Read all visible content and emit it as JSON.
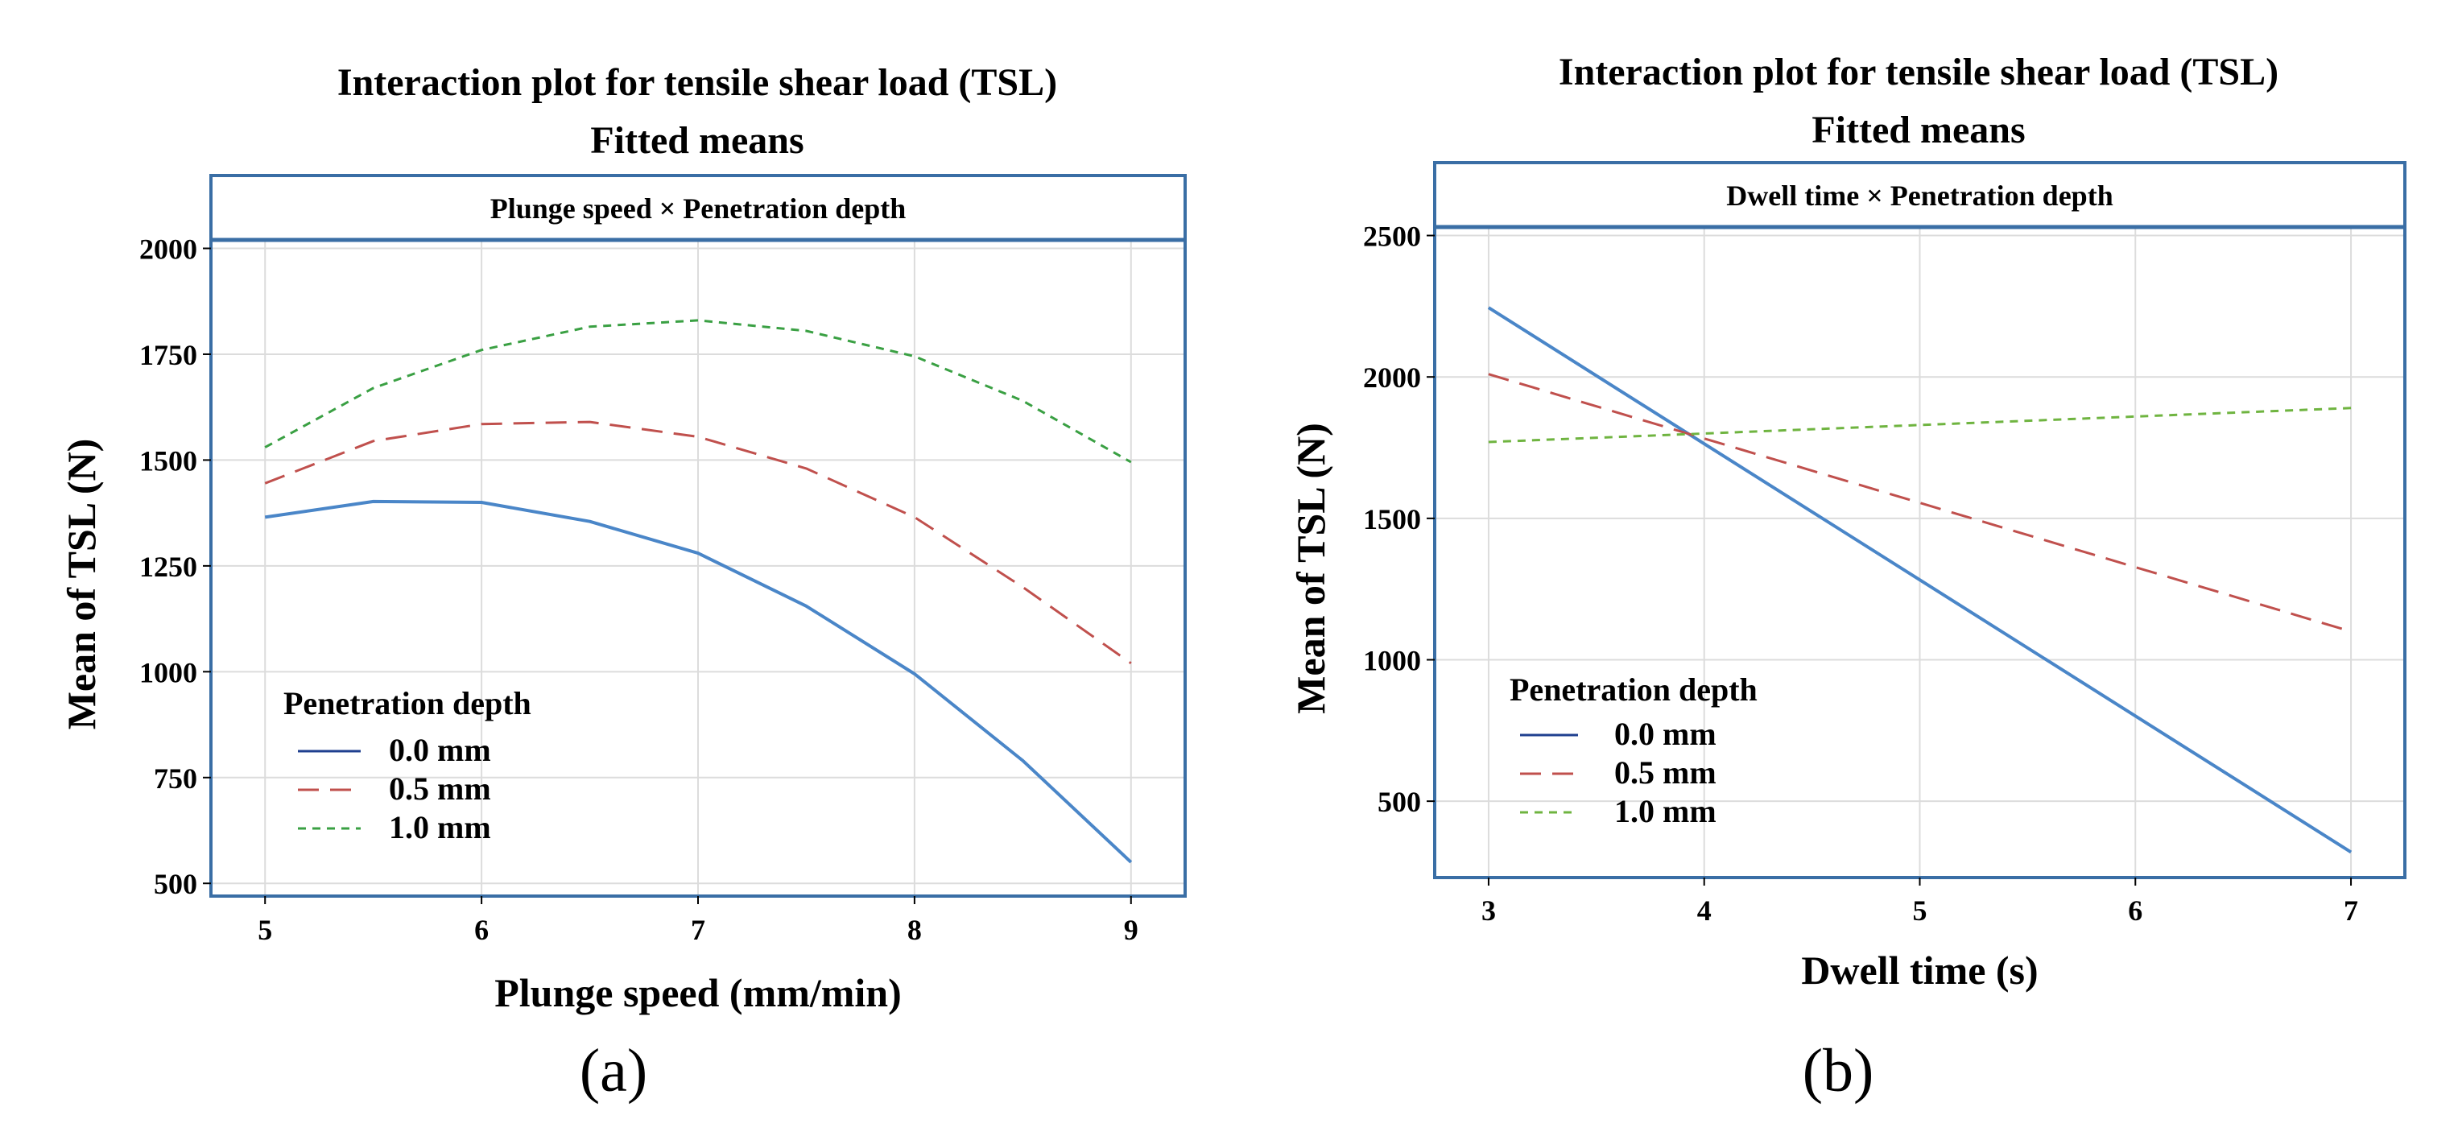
{
  "chart_data": [
    {
      "type": "line",
      "panel_label": "(a)",
      "title": "Interaction plot for tensile shear load (TSL)",
      "subtitle": "Fitted means",
      "strip": "Plunge speed × Penetration depth",
      "xlabel": "Plunge speed (mm/min)",
      "ylabel": "Mean of TSL (N)",
      "xlim": [
        4.75,
        9.25
      ],
      "ylim": [
        470,
        2020
      ],
      "xticks": [
        5,
        6,
        7,
        8,
        9
      ],
      "yticks": [
        500,
        750,
        1000,
        1250,
        1500,
        1750,
        2000
      ],
      "grid": true,
      "legend": {
        "title": "Penetration depth",
        "position": "bottom-left",
        "entries": [
          "0.0 mm",
          "0.5 mm",
          "1.0 mm"
        ]
      },
      "x": [
        5,
        5.5,
        6,
        6.5,
        7,
        7.5,
        8,
        8.5,
        9
      ],
      "series": [
        {
          "name": "0.0 mm",
          "style": "solid",
          "color": "#4a86c8",
          "values": [
            1365,
            1402,
            1400,
            1355,
            1280,
            1155,
            995,
            790,
            550
          ]
        },
        {
          "name": "0.5 mm",
          "style": "dashed",
          "color": "#c0504d",
          "values": [
            1445,
            1545,
            1585,
            1590,
            1555,
            1480,
            1365,
            1200,
            1020
          ]
        },
        {
          "name": "1.0 mm",
          "style": "dotted",
          "color": "#3aa043",
          "values": [
            1530,
            1670,
            1760,
            1815,
            1830,
            1805,
            1745,
            1640,
            1495
          ]
        }
      ]
    },
    {
      "type": "line",
      "panel_label": "(b)",
      "title": "Interaction plot for tensile shear load (TSL)",
      "subtitle": "Fitted means",
      "strip": "Dwell time × Penetration depth",
      "xlabel": "Dwell time (s)",
      "ylabel": "Mean of TSL (N)",
      "xlim": [
        2.75,
        7.25
      ],
      "ylim": [
        230,
        2530
      ],
      "xticks": [
        3,
        4,
        5,
        6,
        7
      ],
      "yticks": [
        500,
        1000,
        1500,
        2000,
        2500
      ],
      "grid": true,
      "legend": {
        "title": "Penetration depth",
        "position": "bottom-left",
        "entries": [
          "0.0 mm",
          "0.5 mm",
          "1.0 mm"
        ]
      },
      "x": [
        3,
        7
      ],
      "series": [
        {
          "name": "0.0 mm",
          "style": "solid",
          "color": "#4a86c8",
          "values": [
            2245,
            320
          ]
        },
        {
          "name": "0.5 mm",
          "style": "dashed",
          "color": "#c0504d",
          "values": [
            2010,
            1100
          ]
        },
        {
          "name": "1.0 mm",
          "style": "dotted",
          "color": "#6fb440",
          "values": [
            1770,
            1890
          ]
        }
      ]
    }
  ],
  "legend_line_color": "#1f3f8f"
}
